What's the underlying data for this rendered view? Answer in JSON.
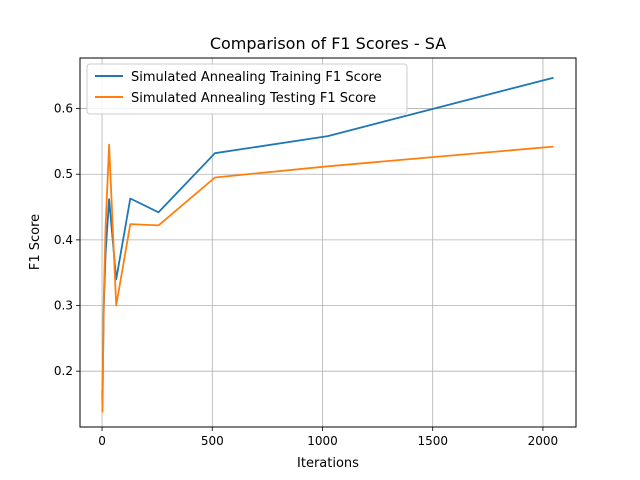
{
  "chart_data": {
    "type": "line",
    "title": "Comparison of F1 Scores - SA",
    "xlabel": "Iterations",
    "ylabel": "F1 Score",
    "xlim": [
      -100,
      2150
    ],
    "ylim": [
      0.115,
      0.677
    ],
    "xticks": [
      0,
      500,
      1000,
      1500,
      2000
    ],
    "yticks": [
      0.2,
      0.3,
      0.4,
      0.5,
      0.6
    ],
    "xtick_labels": [
      "0",
      "500",
      "1000",
      "1500",
      "2000"
    ],
    "ytick_labels": [
      "0.2",
      "0.3",
      "0.4",
      "0.5",
      "0.6"
    ],
    "grid": true,
    "legend_position": "top-left",
    "series": [
      {
        "name": "Simulated Annealing Training F1 Score",
        "color": "#1f77b4",
        "x": [
          1,
          2,
          4,
          8,
          16,
          32,
          64,
          128,
          256,
          512,
          1024,
          2048
        ],
        "y": [
          0.17,
          0.15,
          0.21,
          0.3,
          0.38,
          0.462,
          0.34,
          0.463,
          0.442,
          0.532,
          0.558,
          0.647
        ]
      },
      {
        "name": "Simulated Annealing Testing F1 Score",
        "color": "#ff7f0e",
        "x": [
          1,
          2,
          4,
          8,
          16,
          32,
          64,
          128,
          256,
          512,
          1024,
          2048
        ],
        "y": [
          0.145,
          0.138,
          0.2,
          0.31,
          0.42,
          0.545,
          0.3,
          0.424,
          0.422,
          0.495,
          0.512,
          0.542
        ]
      }
    ]
  }
}
